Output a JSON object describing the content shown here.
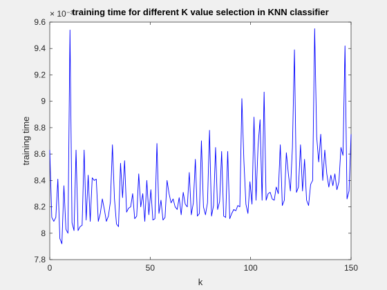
{
  "chart_data": {
    "type": "line",
    "title": "training time for different K value selection in KNN classifier",
    "xlabel": "k",
    "ylabel": "training time",
    "exponent_label": "× 10⁻³",
    "xlim": [
      0,
      150
    ],
    "ylim": [
      7.8,
      9.6
    ],
    "xticks": [
      0,
      50,
      100,
      150
    ],
    "yticks": [
      7.8,
      8,
      8.2,
      8.4,
      8.6,
      8.8,
      9,
      9.2,
      9.4,
      9.6
    ],
    "grid": false,
    "line_color": "#0000ff",
    "series": [
      {
        "values": [
          8.63,
          8.12,
          8.09,
          8.12,
          8.41,
          7.96,
          7.92,
          8.36,
          8.03,
          8.0,
          9.54,
          8.08,
          8.02,
          8.63,
          8.02,
          8.05,
          8.06,
          8.63,
          8.1,
          8.44,
          8.09,
          8.42,
          8.4,
          8.41,
          8.09,
          8.15,
          8.26,
          8.18,
          8.09,
          8.13,
          8.24,
          8.67,
          8.26,
          8.07,
          8.05,
          8.53,
          8.27,
          8.55,
          8.16,
          8.19,
          8.2,
          8.3,
          8.11,
          8.13,
          8.45,
          8.2,
          8.3,
          8.09,
          8.4,
          8.14,
          8.33,
          8.1,
          8.11,
          8.68,
          8.15,
          8.25,
          8.1,
          8.12,
          8.4,
          8.3,
          8.23,
          8.26,
          8.2,
          8.18,
          8.27,
          8.14,
          8.31,
          8.22,
          8.2,
          8.46,
          8.14,
          8.23,
          8.56,
          8.13,
          8.15,
          8.7,
          8.2,
          8.14,
          8.23,
          8.78,
          8.13,
          8.21,
          8.65,
          8.18,
          8.24,
          8.62,
          8.13,
          8.12,
          8.62,
          8.11,
          8.15,
          8.18,
          8.17,
          8.21,
          8.2,
          9.02,
          8.55,
          8.22,
          8.15,
          8.39,
          8.22,
          8.88,
          8.25,
          8.66,
          8.86,
          8.25,
          9.07,
          8.25,
          8.3,
          8.31,
          8.26,
          8.25,
          8.35,
          8.3,
          8.67,
          8.21,
          8.25,
          8.61,
          8.45,
          8.32,
          8.65,
          9.39,
          8.31,
          8.35,
          8.67,
          8.32,
          8.56,
          8.25,
          8.21,
          8.37,
          8.4,
          9.55,
          8.73,
          8.54,
          8.75,
          8.4,
          8.63,
          8.45,
          8.35,
          8.44,
          8.36,
          8.45,
          8.33,
          8.39,
          8.65,
          8.59,
          9.42,
          8.26,
          8.32,
          8.75
        ]
      }
    ]
  }
}
